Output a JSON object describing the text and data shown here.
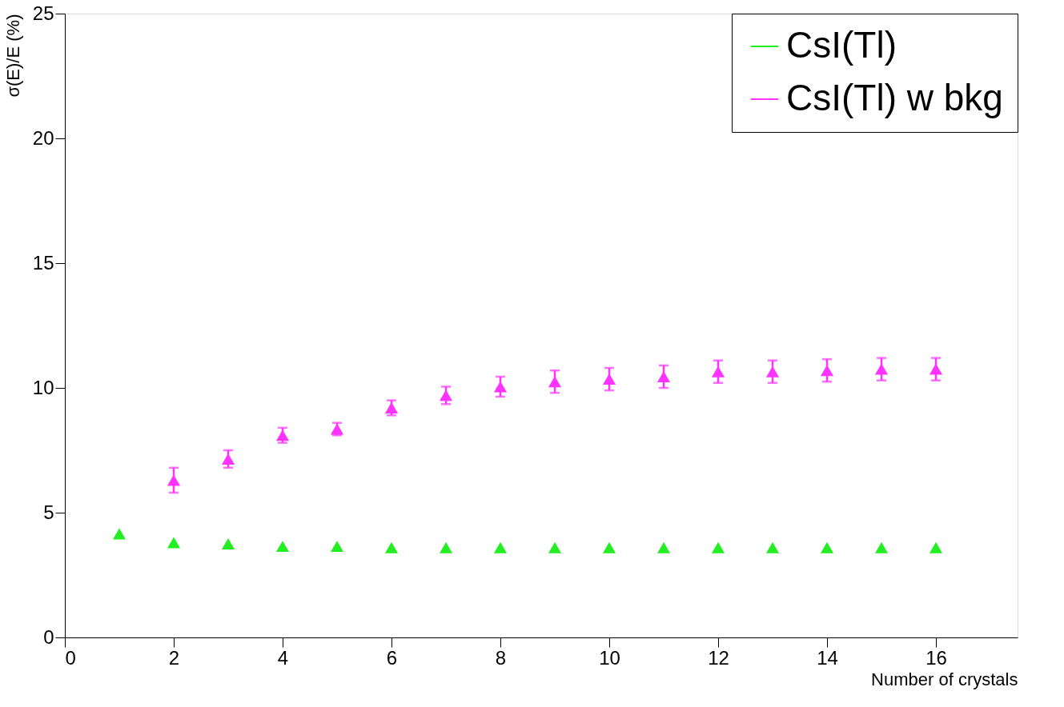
{
  "chart_data": {
    "type": "scatter",
    "xlabel": "Number of crystals",
    "ylabel": "σ(E)/E (%)",
    "xlim": [
      0,
      17.5
    ],
    "xticks": [
      0,
      2,
      4,
      6,
      8,
      10,
      12,
      14,
      16
    ],
    "ylim": [
      0,
      25
    ],
    "yticks": [
      0,
      5,
      10,
      15,
      20,
      25
    ],
    "marker": "triangle",
    "grid": false,
    "legend": "top right",
    "series": [
      {
        "name": "CsI(Tl)",
        "color": "#22ee22",
        "x": [
          1,
          2,
          3,
          4,
          5,
          6,
          7,
          8,
          9,
          10,
          11,
          12,
          13,
          14,
          15,
          16
        ],
        "values": [
          4.15,
          3.8,
          3.75,
          3.65,
          3.65,
          3.6,
          3.6,
          3.6,
          3.6,
          3.6,
          3.6,
          3.6,
          3.6,
          3.6,
          3.6,
          3.6
        ]
      },
      {
        "name": "CsI(Tl) w bkg",
        "color": "#ff33ff",
        "x": [
          2,
          3,
          4,
          5,
          6,
          7,
          8,
          9,
          10,
          11,
          12,
          13,
          14,
          15,
          16
        ],
        "values": [
          6.3,
          7.15,
          8.1,
          8.35,
          9.2,
          9.7,
          10.05,
          10.25,
          10.35,
          10.45,
          10.65,
          10.65,
          10.7,
          10.75,
          10.75
        ],
        "errors": [
          0.5,
          0.35,
          0.3,
          0.25,
          0.3,
          0.35,
          0.4,
          0.45,
          0.45,
          0.45,
          0.45,
          0.45,
          0.45,
          0.45,
          0.45
        ]
      }
    ]
  }
}
